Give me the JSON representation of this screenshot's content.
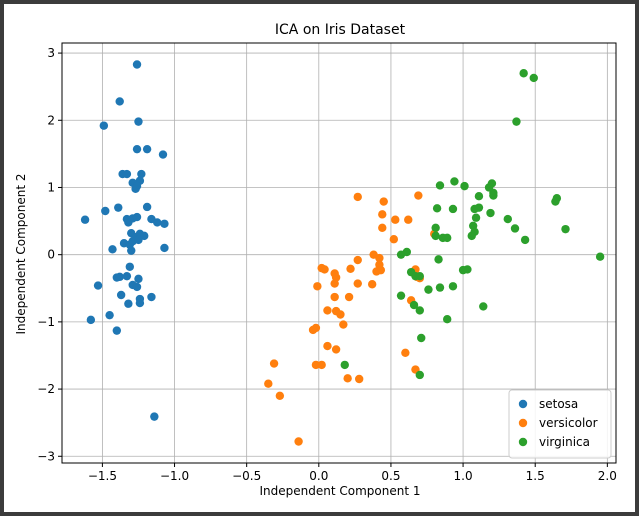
{
  "chart_data": {
    "type": "scatter",
    "title": "ICA on Iris Dataset",
    "xlabel": "Independent Component 1",
    "ylabel": "Independent Component 2",
    "xlim": [
      -1.78,
      2.06
    ],
    "ylim": [
      -3.1,
      3.15
    ],
    "xticks": [
      -1.5,
      -1.0,
      -0.5,
      0.0,
      0.5,
      1.0,
      1.5,
      2.0
    ],
    "xtick_labels": [
      "−1.5",
      "−1.0",
      "−0.5",
      "0.0",
      "0.5",
      "1.0",
      "1.5",
      "2.0"
    ],
    "yticks": [
      -3,
      -2,
      -1,
      0,
      1,
      2,
      3
    ],
    "ytick_labels": [
      "−3",
      "−2",
      "−1",
      "0",
      "1",
      "2",
      "3"
    ],
    "grid": true,
    "legend": "lower-right",
    "series": [
      {
        "name": "setosa",
        "color": "#1f77b4",
        "points": [
          [
            -1.26,
            2.83
          ],
          [
            -1.38,
            2.28
          ],
          [
            -1.49,
            1.92
          ],
          [
            -1.25,
            1.98
          ],
          [
            -1.26,
            1.57
          ],
          [
            -1.19,
            1.57
          ],
          [
            -1.08,
            1.49
          ],
          [
            -1.36,
            1.2
          ],
          [
            -1.33,
            1.2
          ],
          [
            -1.23,
            1.2
          ],
          [
            -1.24,
            1.1
          ],
          [
            -1.29,
            1.07
          ],
          [
            -1.26,
            1.02
          ],
          [
            -1.27,
            0.98
          ],
          [
            -1.48,
            0.65
          ],
          [
            -1.39,
            0.7
          ],
          [
            -1.19,
            0.71
          ],
          [
            -1.62,
            0.52
          ],
          [
            -1.32,
            0.48
          ],
          [
            -1.33,
            0.53
          ],
          [
            -1.29,
            0.54
          ],
          [
            -1.26,
            0.56
          ],
          [
            -1.16,
            0.53
          ],
          [
            -1.12,
            0.48
          ],
          [
            -1.07,
            0.46
          ],
          [
            -1.3,
            0.32
          ],
          [
            -1.27,
            0.26
          ],
          [
            -1.24,
            0.31
          ],
          [
            -1.21,
            0.28
          ],
          [
            -1.35,
            0.17
          ],
          [
            -1.31,
            0.15
          ],
          [
            -1.29,
            0.2
          ],
          [
            -1.25,
            0.22
          ],
          [
            -1.3,
            0.06
          ],
          [
            -1.43,
            0.08
          ],
          [
            -1.07,
            0.1
          ],
          [
            -1.31,
            -0.18
          ],
          [
            -1.4,
            -0.34
          ],
          [
            -1.38,
            -0.33
          ],
          [
            -1.33,
            -0.32
          ],
          [
            -1.25,
            -0.36
          ],
          [
            -1.53,
            -0.46
          ],
          [
            -1.29,
            -0.45
          ],
          [
            -1.26,
            -0.48
          ],
          [
            -1.37,
            -0.6
          ],
          [
            -1.24,
            -0.66
          ],
          [
            -1.24,
            -0.72
          ],
          [
            -1.16,
            -0.63
          ],
          [
            -1.32,
            -0.73
          ],
          [
            -1.45,
            -0.9
          ],
          [
            -1.4,
            -1.13
          ],
          [
            -1.58,
            -0.97
          ],
          [
            -1.14,
            -2.41
          ]
        ]
      },
      {
        "name": "versicolor",
        "color": "#ff7f0e",
        "points": [
          [
            0.27,
            0.86
          ],
          [
            0.45,
            0.79
          ],
          [
            0.69,
            0.88
          ],
          [
            0.44,
            0.6
          ],
          [
            0.53,
            0.52
          ],
          [
            0.62,
            0.52
          ],
          [
            0.44,
            0.4
          ],
          [
            0.52,
            0.23
          ],
          [
            0.8,
            0.31
          ],
          [
            0.38,
            0.0
          ],
          [
            0.42,
            -0.05
          ],
          [
            0.27,
            -0.08
          ],
          [
            0.42,
            -0.15
          ],
          [
            0.43,
            -0.23
          ],
          [
            0.4,
            -0.25
          ],
          [
            0.37,
            -0.44
          ],
          [
            0.22,
            -0.21
          ],
          [
            0.11,
            -0.28
          ],
          [
            0.02,
            -0.2
          ],
          [
            0.04,
            -0.22
          ],
          [
            0.12,
            -0.34
          ],
          [
            0.11,
            -0.43
          ],
          [
            -0.01,
            -0.47
          ],
          [
            0.27,
            -0.43
          ],
          [
            0.21,
            -0.63
          ],
          [
            0.11,
            -0.63
          ],
          [
            0.06,
            -0.83
          ],
          [
            0.12,
            -0.84
          ],
          [
            0.15,
            -0.89
          ],
          [
            0.17,
            -1.04
          ],
          [
            -0.02,
            -1.09
          ],
          [
            -0.04,
            -1.12
          ],
          [
            0.06,
            -1.36
          ],
          [
            0.12,
            -1.41
          ],
          [
            0.6,
            -1.46
          ],
          [
            0.64,
            -0.68
          ],
          [
            0.68,
            -0.33
          ],
          [
            0.67,
            -0.22
          ],
          [
            0.7,
            -0.35
          ],
          [
            0.67,
            -1.71
          ],
          [
            0.2,
            -1.84
          ],
          [
            0.28,
            -1.85
          ],
          [
            0.02,
            -1.64
          ],
          [
            -0.02,
            -1.64
          ],
          [
            -0.31,
            -1.62
          ],
          [
            -0.35,
            -1.92
          ],
          [
            -0.27,
            -2.1
          ],
          [
            -0.14,
            -2.78
          ]
        ]
      },
      {
        "name": "virginica",
        "color": "#2ca02c",
        "points": [
          [
            1.42,
            2.7
          ],
          [
            1.49,
            2.63
          ],
          [
            1.37,
            1.98
          ],
          [
            0.94,
            1.09
          ],
          [
            1.01,
            1.02
          ],
          [
            0.84,
            1.03
          ],
          [
            1.2,
            1.06
          ],
          [
            1.18,
            1.0
          ],
          [
            1.21,
            0.92
          ],
          [
            1.21,
            0.88
          ],
          [
            1.11,
            0.87
          ],
          [
            1.65,
            0.84
          ],
          [
            1.64,
            0.79
          ],
          [
            0.82,
            0.69
          ],
          [
            0.93,
            0.68
          ],
          [
            1.11,
            0.7
          ],
          [
            1.08,
            0.68
          ],
          [
            1.19,
            0.62
          ],
          [
            1.09,
            0.55
          ],
          [
            1.31,
            0.53
          ],
          [
            1.07,
            0.43
          ],
          [
            0.81,
            0.4
          ],
          [
            1.36,
            0.39
          ],
          [
            1.71,
            0.38
          ],
          [
            1.08,
            0.34
          ],
          [
            1.06,
            0.28
          ],
          [
            0.86,
            0.25
          ],
          [
            0.89,
            0.25
          ],
          [
            0.81,
            0.28
          ],
          [
            1.43,
            0.22
          ],
          [
            0.57,
            0.0
          ],
          [
            0.61,
            0.04
          ],
          [
            0.83,
            -0.07
          ],
          [
            1.95,
            -0.03
          ],
          [
            1.03,
            -0.22
          ],
          [
            1.0,
            -0.23
          ],
          [
            0.64,
            -0.26
          ],
          [
            0.67,
            -0.32
          ],
          [
            0.7,
            -0.32
          ],
          [
            0.76,
            -0.52
          ],
          [
            0.84,
            -0.49
          ],
          [
            0.93,
            -0.47
          ],
          [
            0.57,
            -0.61
          ],
          [
            0.66,
            -0.75
          ],
          [
            0.7,
            -0.83
          ],
          [
            1.14,
            -0.77
          ],
          [
            0.89,
            -0.96
          ],
          [
            0.71,
            -1.24
          ],
          [
            0.18,
            -1.64
          ],
          [
            0.7,
            -1.79
          ]
        ]
      }
    ]
  }
}
